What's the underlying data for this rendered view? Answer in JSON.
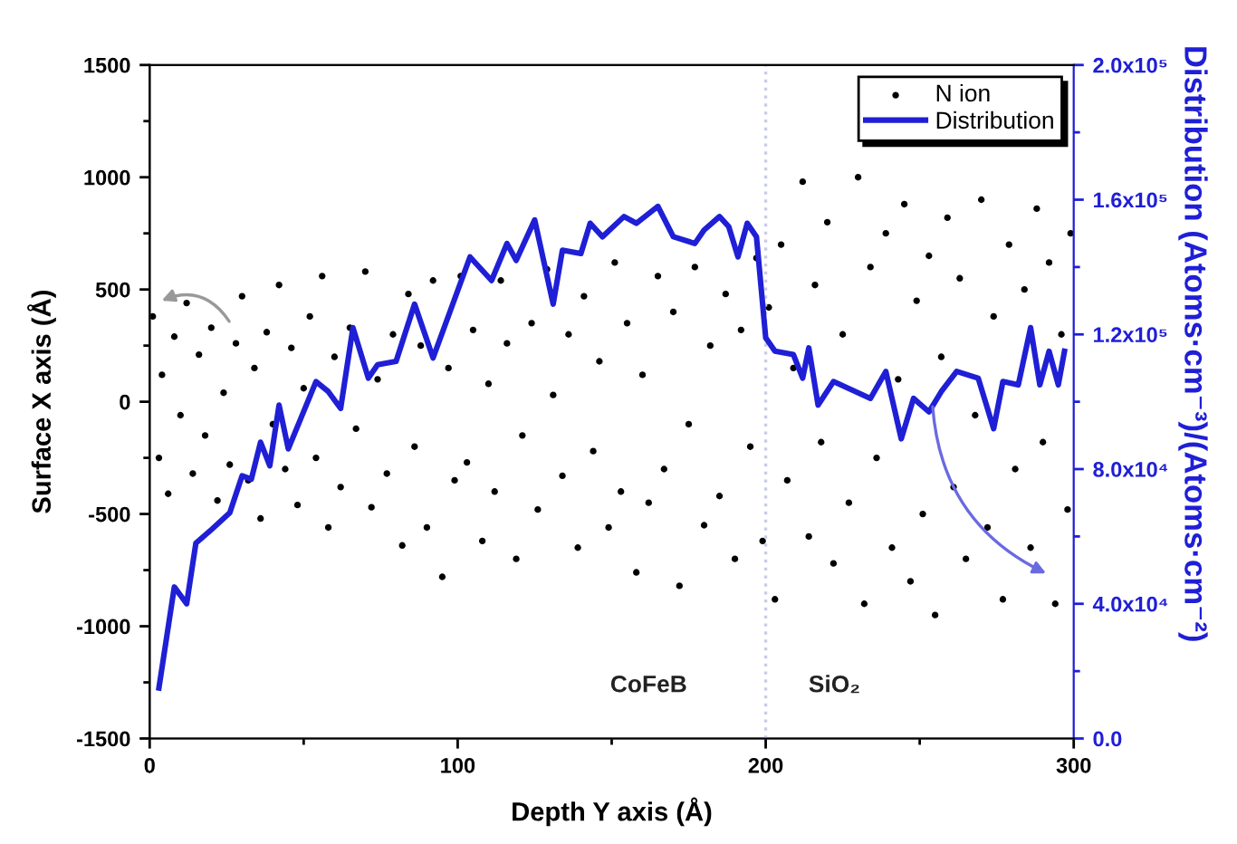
{
  "chart_data": {
    "type": "scatter",
    "xlabel": "Depth Y axis (Å)",
    "ylabel": "Surface X axis (Å)",
    "y2label": "Distribution (Atoms·cm⁻³)/(Atoms·cm⁻²)",
    "xlim": [
      0,
      300
    ],
    "xticks": [
      0,
      100,
      200,
      300
    ],
    "ylim": [
      -1500,
      1500
    ],
    "yticks": [
      -1500,
      -1000,
      -500,
      0,
      500,
      1000,
      1500
    ],
    "y2lim": [
      0,
      200000
    ],
    "y2ticks": [
      {
        "value": 0,
        "label": "0.0"
      },
      {
        "value": 40000,
        "label": "4.0x10⁴"
      },
      {
        "value": 80000,
        "label": "8.0x10⁴"
      },
      {
        "value": 120000,
        "label": "1.2x10⁵"
      },
      {
        "value": 160000,
        "label": "1.6x10⁵"
      },
      {
        "value": 200000,
        "label": "2.0x10⁵"
      }
    ],
    "legend": "top right",
    "series": [
      {
        "name": "N ion",
        "color": "#000000",
        "marker": "circle",
        "x": [
          1,
          3,
          4,
          6,
          8,
          10,
          12,
          14,
          16,
          18,
          20,
          22,
          24,
          26,
          28,
          30,
          32,
          34,
          36,
          38,
          40,
          42,
          44,
          46,
          48,
          50,
          52,
          54,
          56,
          58,
          60,
          62,
          65,
          67,
          70,
          72,
          74,
          77,
          79,
          82,
          84,
          86,
          88,
          90,
          92,
          95,
          97,
          99,
          101,
          103,
          105,
          108,
          110,
          112,
          114,
          116,
          119,
          121,
          124,
          126,
          129,
          131,
          134,
          136,
          139,
          141,
          144,
          146,
          149,
          151,
          153,
          155,
          158,
          160,
          162,
          165,
          167,
          170,
          172,
          175,
          177,
          180,
          182,
          185,
          187,
          190,
          192,
          195,
          197,
          199,
          201,
          203,
          205,
          207,
          209,
          212,
          214,
          216,
          218,
          220,
          222,
          225,
          227,
          230,
          232,
          234,
          236,
          239,
          241,
          243,
          245,
          247,
          249,
          251,
          253,
          255,
          257,
          259,
          261,
          263,
          265,
          268,
          270,
          272,
          274,
          277,
          279,
          281,
          284,
          286,
          288,
          290,
          292,
          294,
          296,
          298,
          299
        ],
        "values": [
          380,
          -250,
          120,
          -410,
          290,
          -60,
          440,
          -320,
          210,
          -150,
          330,
          -440,
          40,
          -280,
          260,
          470,
          -350,
          150,
          -520,
          310,
          -100,
          520,
          -300,
          240,
          -460,
          60,
          380,
          -250,
          560,
          -560,
          200,
          -380,
          330,
          -120,
          580,
          -470,
          100,
          -320,
          300,
          -640,
          480,
          -200,
          250,
          -560,
          540,
          -780,
          150,
          -350,
          560,
          -270,
          320,
          -620,
          80,
          -400,
          540,
          260,
          -700,
          -150,
          350,
          -480,
          590,
          30,
          -330,
          300,
          -650,
          470,
          -220,
          180,
          -560,
          620,
          -400,
          350,
          -760,
          120,
          -450,
          560,
          -300,
          400,
          -820,
          -100,
          600,
          -550,
          250,
          -420,
          480,
          -700,
          320,
          -200,
          640,
          -620,
          420,
          -880,
          700,
          -350,
          150,
          980,
          -600,
          520,
          -180,
          800,
          -720,
          300,
          -450,
          1000,
          -900,
          600,
          -250,
          750,
          -650,
          100,
          880,
          -800,
          450,
          -500,
          650,
          -950,
          200,
          820,
          -380,
          550,
          -700,
          -60,
          900,
          -560,
          380,
          -880,
          700,
          -300,
          500,
          -650,
          860,
          -180,
          620,
          -900,
          300,
          -480,
          750
        ]
      },
      {
        "name": "Distribution",
        "type": "line",
        "axis": "y2",
        "color": "#1f1fd6",
        "marker": "none",
        "line_style": "solid",
        "x": [
          3,
          8,
          12,
          15,
          20,
          26,
          30,
          33,
          36,
          39,
          42,
          45,
          54,
          58,
          62,
          66,
          71,
          74,
          80,
          86,
          92,
          98,
          104,
          111,
          116,
          119,
          125,
          131,
          134,
          140,
          143,
          147,
          154,
          158,
          165,
          170,
          177,
          180,
          185,
          188,
          191,
          194,
          197,
          200,
          203,
          209,
          212,
          214,
          217,
          222,
          234,
          239,
          244,
          248,
          253,
          257,
          262,
          269,
          274,
          277,
          282,
          286,
          289,
          292,
          295,
          297
        ],
        "values": [
          15000,
          45000,
          40000,
          58000,
          62000,
          67000,
          78000,
          77000,
          88000,
          81000,
          99000,
          86000,
          106000,
          103000,
          98000,
          122000,
          107000,
          111000,
          112000,
          129000,
          113000,
          128000,
          143000,
          136000,
          147000,
          142000,
          154000,
          129000,
          145000,
          144000,
          153000,
          149000,
          155000,
          153000,
          158000,
          149000,
          147000,
          151000,
          155000,
          152000,
          143000,
          153000,
          149000,
          119000,
          115000,
          114000,
          107000,
          116000,
          99000,
          106000,
          101000,
          109000,
          89000,
          101000,
          97000,
          103000,
          109000,
          107000,
          92000,
          106000,
          105000,
          122000,
          105000,
          115000,
          105000,
          115000
        ]
      }
    ],
    "ref_lines": [
      {
        "axis": "x",
        "value": 200,
        "color": "#c8cce8",
        "line_style": "dotted"
      }
    ],
    "annotations": [
      "CoFeB",
      "SiO₂"
    ]
  }
}
